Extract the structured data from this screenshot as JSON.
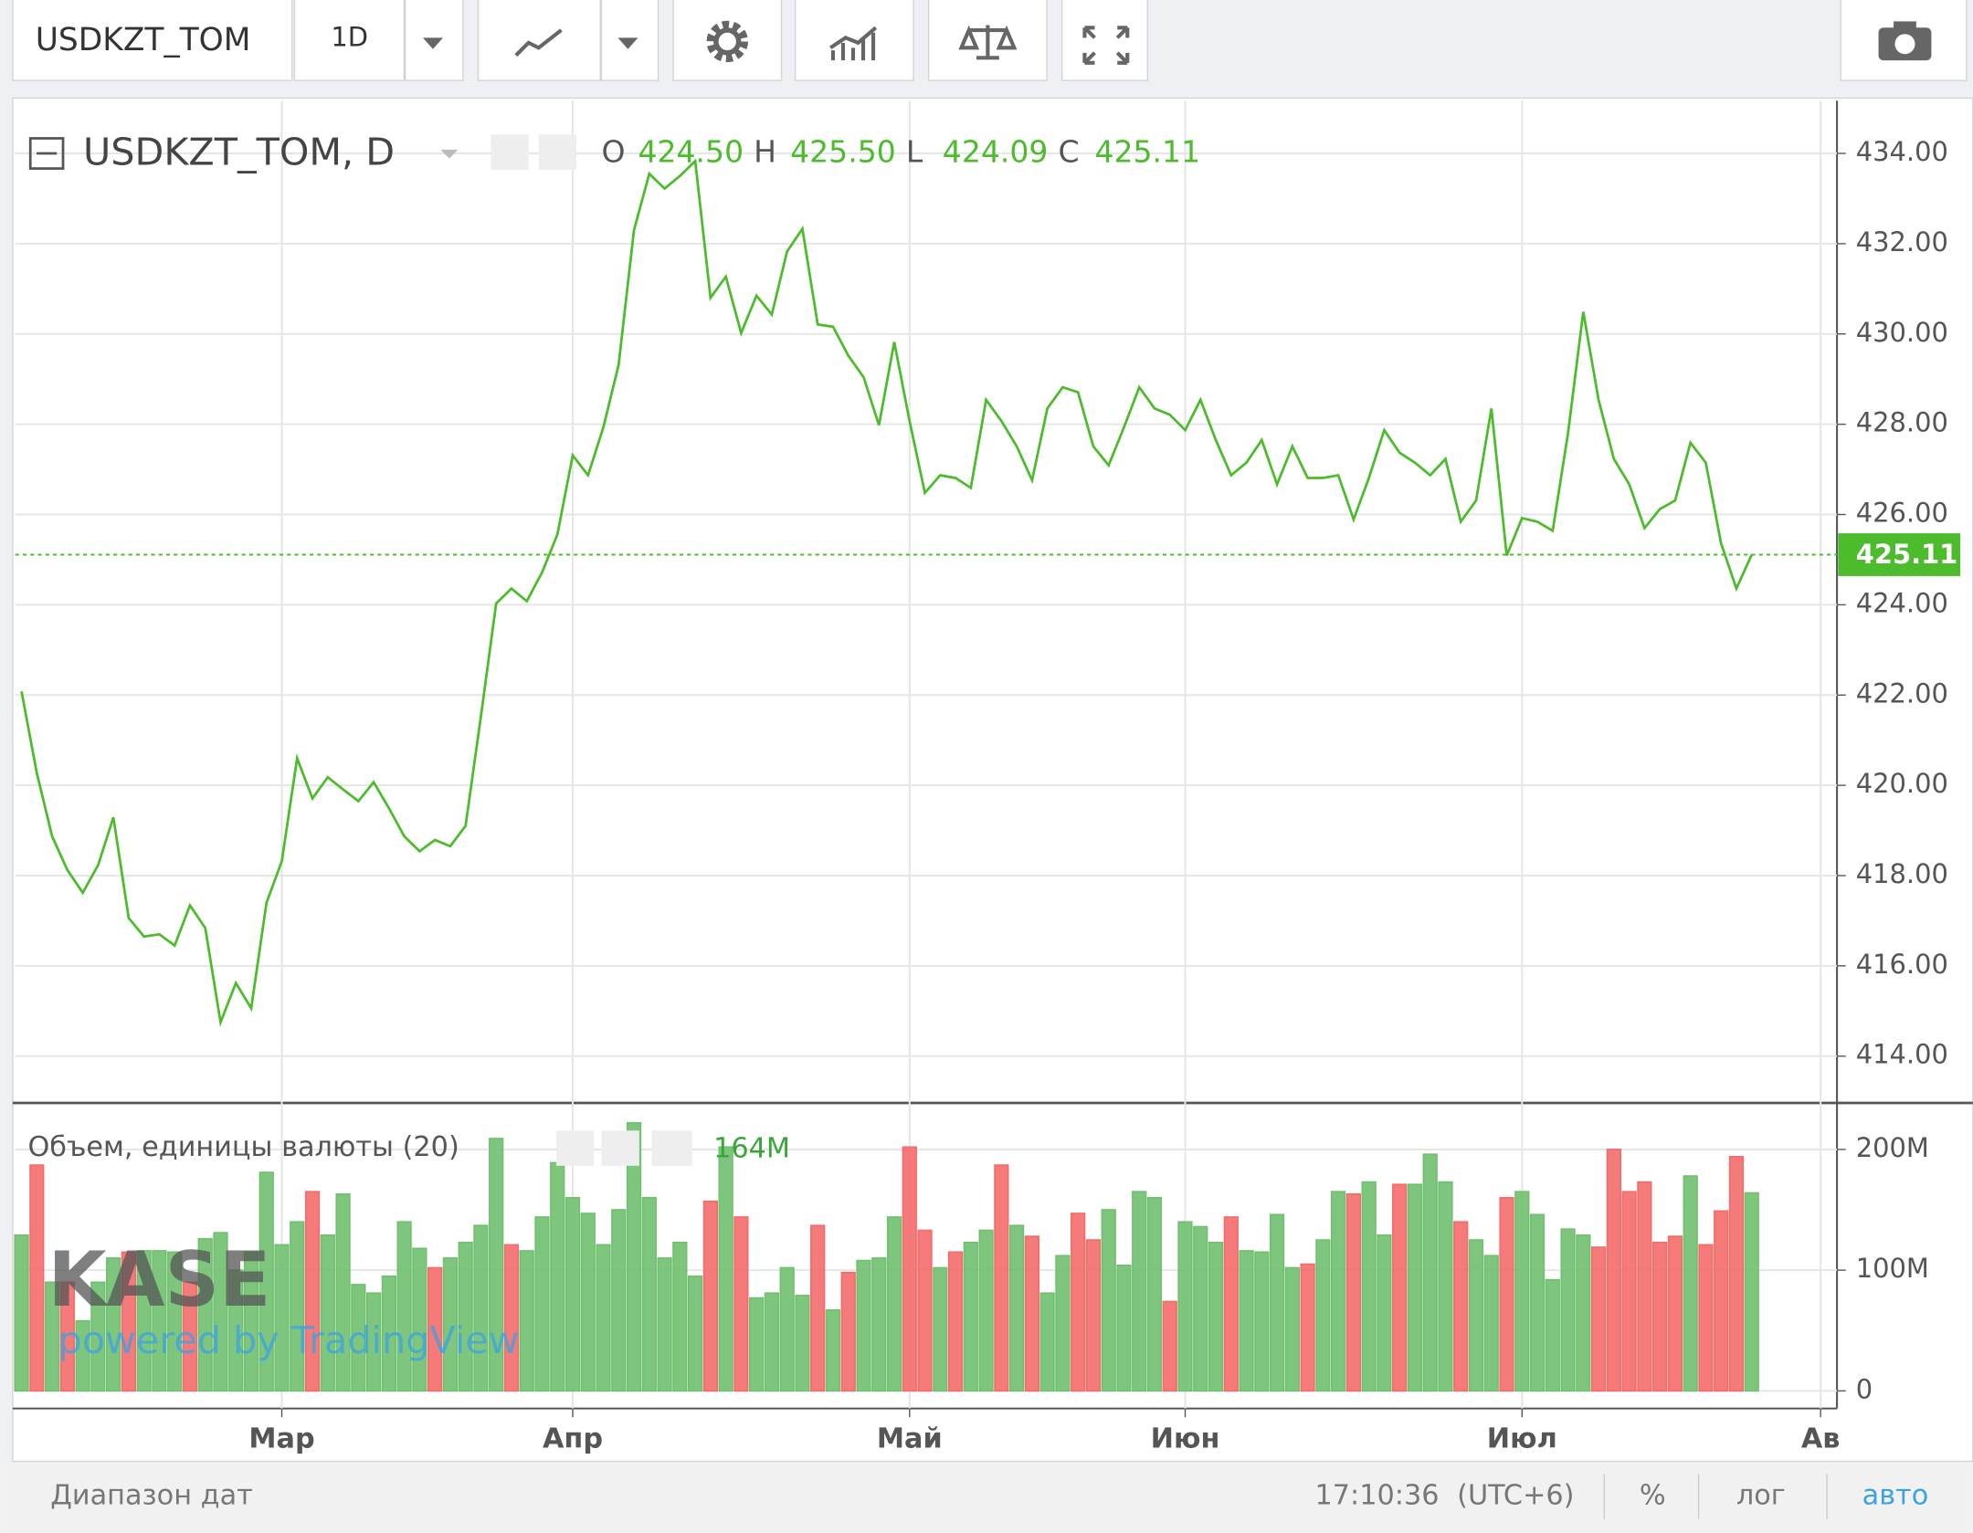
{
  "toolbar": {
    "symbol": "USDKZT_TOM",
    "interval": "1D"
  },
  "chart_data": [
    {
      "type": "line",
      "title": "USDKZT_TOM, D",
      "color": "#4cbb2c",
      "grid": true,
      "ohlc": [
        {
          "key": "O",
          "value": 424.5,
          "label": "424.50"
        },
        {
          "key": "H",
          "value": 425.5,
          "label": "425.50"
        },
        {
          "key": "L",
          "value": 424.09,
          "label": "424.09"
        },
        {
          "key": "C",
          "value": 425.11,
          "label": "425.11"
        }
      ],
      "values": [
        422.08,
        420.27,
        418.87,
        418.12,
        417.62,
        418.23,
        419.29,
        417.06,
        416.65,
        416.7,
        416.45,
        417.34,
        416.84,
        414.75,
        415.62,
        415.06,
        417.4,
        418.32,
        420.6,
        419.71,
        420.18,
        419.91,
        419.65,
        420.07,
        419.49,
        418.87,
        418.54,
        418.79,
        418.65,
        419.1,
        421.52,
        424.03,
        424.36,
        424.08,
        424.72,
        425.56,
        427.31,
        426.87,
        427.93,
        429.32,
        432.3,
        433.55,
        433.22,
        433.5,
        433.83,
        430.8,
        431.27,
        430.02,
        430.85,
        430.43,
        431.83,
        432.33,
        430.21,
        430.16,
        429.52,
        429.04,
        427.98,
        429.82,
        428.07,
        426.48,
        426.87,
        426.81,
        426.59,
        428.54,
        428.07,
        427.51,
        426.76,
        428.35,
        428.82,
        428.71,
        427.51,
        427.09,
        427.93,
        428.82,
        428.35,
        428.21,
        427.87,
        428.54,
        427.65,
        426.87,
        427.15,
        427.65,
        426.67,
        427.51,
        426.81,
        426.81,
        426.87,
        425.89,
        426.81,
        427.87,
        427.37,
        427.15,
        426.87,
        427.23,
        425.84,
        426.31,
        428.35,
        425.09,
        425.92,
        425.84,
        425.64,
        427.79,
        430.49,
        428.54,
        427.23,
        426.67,
        425.7,
        426.12,
        426.31,
        427.59,
        427.15,
        425.36,
        424.36,
        425.11
      ],
      "ylim": [
        413.02,
        435.17
      ],
      "yticks": [
        {
          "value": 414,
          "label": "414.00"
        },
        {
          "value": 416,
          "label": "416.00"
        },
        {
          "value": 418,
          "label": "418.00"
        },
        {
          "value": 420,
          "label": "420.00"
        },
        {
          "value": 422,
          "label": "422.00"
        },
        {
          "value": 424,
          "label": "424.00"
        },
        {
          "value": 426,
          "label": "426.00"
        },
        {
          "value": 428,
          "label": "428.00"
        },
        {
          "value": 430,
          "label": "430.00"
        },
        {
          "value": 432,
          "label": "432.00"
        },
        {
          "value": 434,
          "label": "434.00"
        }
      ]
    },
    {
      "type": "bar",
      "title": "Объем, единицы валюты (20)",
      "grid": true,
      "values": [
        129,
        187,
        90,
        90,
        58,
        90,
        110,
        115,
        116,
        116,
        115,
        90,
        126,
        131,
        100,
        115,
        181,
        121,
        140,
        165,
        129,
        163,
        88,
        81,
        95,
        140,
        118,
        102,
        110,
        123,
        137,
        209,
        121,
        116,
        144,
        189,
        160,
        147,
        121,
        150,
        222,
        160,
        110,
        123,
        95,
        157,
        202,
        144,
        77,
        81,
        102,
        79,
        137,
        67,
        98,
        108,
        110,
        144,
        202,
        133,
        102,
        115,
        123,
        133,
        187,
        137,
        128,
        81,
        112,
        147,
        125,
        150,
        104,
        165,
        160,
        74,
        140,
        136,
        123,
        144,
        116,
        115,
        146,
        102,
        105,
        125,
        165,
        163,
        173,
        129,
        171,
        171,
        196,
        173,
        140,
        125,
        112,
        160,
        165,
        146,
        92,
        134,
        129,
        119,
        200,
        165,
        173,
        123,
        128,
        178,
        121,
        149,
        194,
        164
      ],
      "value_labels": [
        null,
        null,
        null,
        null,
        null,
        null,
        null,
        null,
        null,
        null,
        null,
        null,
        null,
        null,
        null,
        null,
        null,
        null,
        null,
        null,
        null,
        null,
        null,
        null,
        null,
        null,
        null,
        null,
        null,
        null,
        null,
        null,
        null,
        null,
        null,
        null,
        null,
        null,
        null,
        null,
        null,
        null,
        null,
        null,
        null,
        null,
        null,
        null,
        null,
        null,
        null,
        null,
        null,
        null,
        null,
        null,
        null,
        null,
        null,
        null,
        null,
        null,
        null,
        null,
        null,
        null,
        null,
        null,
        null,
        null,
        null,
        null,
        null,
        null,
        null,
        null,
        null,
        null,
        null,
        null,
        null,
        null,
        null,
        null,
        null,
        null,
        null,
        null,
        null,
        null,
        null,
        null,
        null,
        null,
        null,
        null,
        null,
        null,
        null,
        null,
        null,
        null,
        null,
        null,
        null,
        null,
        null,
        null,
        null,
        null,
        null,
        null,
        null,
        "164M"
      ],
      "colors": [
        "#70c070",
        "#f46c6c",
        "#70c070",
        "#f46c6c",
        "#70c070",
        "#70c070",
        "#70c070",
        "#f46c6c",
        "#70c070",
        "#70c070",
        "#70c070",
        "#f46c6c",
        "#70c070",
        "#70c070",
        "#70c070",
        "#70c070",
        "#70c070",
        "#70c070",
        "#70c070",
        "#f46c6c",
        "#70c070",
        "#70c070",
        "#70c070",
        "#70c070",
        "#70c070",
        "#70c070",
        "#70c070",
        "#f46c6c",
        "#70c070",
        "#70c070",
        "#70c070",
        "#70c070",
        "#f46c6c",
        "#70c070",
        "#70c070",
        "#70c070",
        "#70c070",
        "#70c070",
        "#70c070",
        "#70c070",
        "#70c070",
        "#70c070",
        "#70c070",
        "#70c070",
        "#70c070",
        "#f46c6c",
        "#70c070",
        "#f46c6c",
        "#70c070",
        "#70c070",
        "#70c070",
        "#70c070",
        "#f46c6c",
        "#70c070",
        "#f46c6c",
        "#70c070",
        "#70c070",
        "#70c070",
        "#f46c6c",
        "#f46c6c",
        "#70c070",
        "#f46c6c",
        "#70c070",
        "#70c070",
        "#f46c6c",
        "#70c070",
        "#f46c6c",
        "#70c070",
        "#70c070",
        "#f46c6c",
        "#f46c6c",
        "#70c070",
        "#70c070",
        "#70c070",
        "#70c070",
        "#f46c6c",
        "#70c070",
        "#70c070",
        "#70c070",
        "#f46c6c",
        "#70c070",
        "#70c070",
        "#70c070",
        "#70c070",
        "#f46c6c",
        "#70c070",
        "#70c070",
        "#f46c6c",
        "#70c070",
        "#70c070",
        "#f46c6c",
        "#70c070",
        "#70c070",
        "#70c070",
        "#f46c6c",
        "#70c070",
        "#70c070",
        "#f46c6c",
        "#70c070",
        "#70c070",
        "#70c070",
        "#70c070",
        "#70c070",
        "#f46c6c",
        "#f46c6c",
        "#f46c6c",
        "#f46c6c",
        "#f46c6c",
        "#f46c6c",
        "#70c070",
        "#f46c6c",
        "#f46c6c",
        "#f46c6c",
        "#70c070"
      ],
      "ylim": [
        -12.5,
        237.5
      ],
      "yticks": [
        0,
        {
          "value": 100,
          "label": "100M"
        },
        {
          "value": 200,
          "label": "200M"
        }
      ],
      "xticks": [
        {
          "value": 17,
          "label": "Мар"
        },
        {
          "value": 36,
          "label": "Апр"
        },
        {
          "value": 58,
          "label": "Май"
        },
        {
          "value": 76,
          "label": "Июн"
        },
        {
          "value": 98,
          "label": "Июл"
        },
        {
          "value": 117.5,
          "label": "Ав"
        }
      ]
    }
  ],
  "watermark": {
    "logo": "KASE",
    "tagline": "powered by TradingView"
  },
  "footer": {
    "range": "Диапазон дат",
    "time": "17:10:36",
    "timezone": "(UTC+6)",
    "percent": "%",
    "log": "лог",
    "auto": "авто"
  }
}
